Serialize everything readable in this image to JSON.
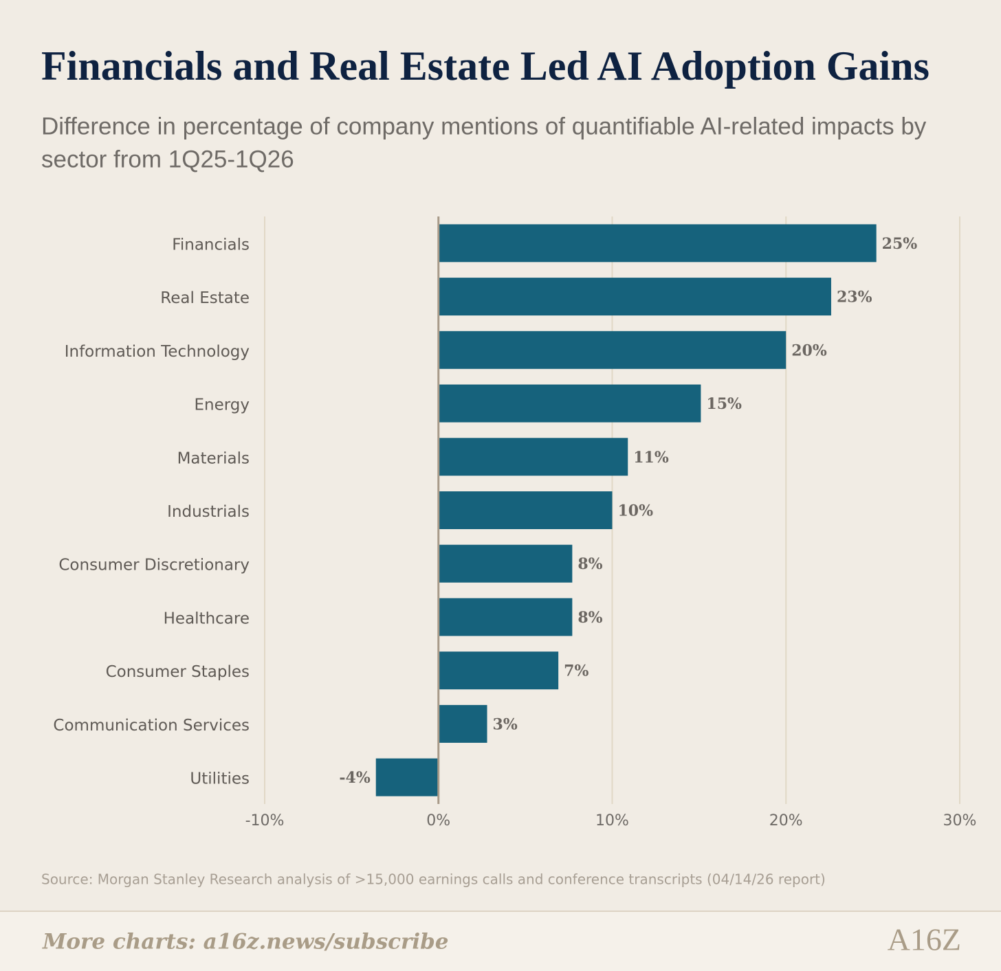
{
  "chart_data": {
    "type": "hbar",
    "title": "Financials and Real Estate Led AI Adoption Gains",
    "subtitle_lines": [
      "Difference in percentage of company mentions of quantifiable AI-related impacts by",
      "sector from 1Q25-1Q26"
    ],
    "categories": [
      "Financials",
      "Real Estate",
      "Information Technology",
      "Energy",
      "Materials",
      "Industrials",
      "Consumer Discretionary",
      "Healthcare",
      "Consumer Staples",
      "Communication Services",
      "Utilities"
    ],
    "values": [
      25.2,
      22.6,
      20.0,
      15.1,
      10.9,
      10.0,
      7.7,
      7.7,
      6.9,
      2.8,
      -3.6
    ],
    "value_labels": [
      "25%",
      "23%",
      "20%",
      "15%",
      "11%",
      "10%",
      "8%",
      "8%",
      "7%",
      "3%",
      "-4%"
    ],
    "color": "#16627c",
    "xlim": [
      -10,
      30
    ],
    "xticks": [
      {
        "value": -10,
        "label": "-10%"
      },
      {
        "value": 0,
        "label": "0%"
      },
      {
        "value": 10,
        "label": "10%"
      },
      {
        "value": 20,
        "label": "20%"
      },
      {
        "value": 30,
        "label": "30%"
      }
    ],
    "grid": true,
    "source": "Source: Morgan Stanley Research analysis of >15,000 earnings calls and conference transcripts (04/14/26 report)",
    "footer": "More charts: a16z.news/subscribe",
    "logo": "A16Z"
  }
}
